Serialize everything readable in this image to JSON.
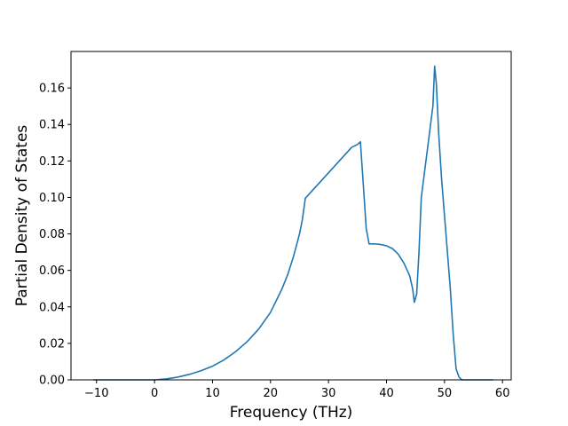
{
  "chart_data": {
    "type": "line",
    "title": "",
    "xlabel": "Frequency (THz)",
    "ylabel": "Partial Density of States",
    "xlim": [
      -14.4,
      61.5
    ],
    "ylim": [
      0.0,
      0.18
    ],
    "xticks": [
      -10,
      0,
      10,
      20,
      30,
      40,
      50,
      60
    ],
    "xtick_labels": [
      "−10",
      "0",
      "10",
      "20",
      "30",
      "40",
      "50",
      "60"
    ],
    "yticks": [
      0.0,
      0.02,
      0.04,
      0.06,
      0.08,
      0.1,
      0.12,
      0.14,
      0.16
    ],
    "ytick_labels": [
      "0.00",
      "0.02",
      "0.04",
      "0.06",
      "0.08",
      "0.10",
      "0.12",
      "0.14",
      "0.16"
    ],
    "grid": false,
    "legend": "none",
    "colors": {
      "line": "#1f77b4",
      "axes": "#000000",
      "background": "#ffffff"
    },
    "series": [
      {
        "x": [
          -10.5,
          -5,
          0,
          2,
          4,
          6,
          8,
          10,
          12,
          14,
          16,
          18,
          20,
          22,
          23,
          24,
          25,
          25.5,
          26,
          28,
          30,
          32,
          34,
          35,
          35.5,
          36,
          36.5,
          37,
          38,
          39,
          40,
          41,
          42,
          43,
          44,
          44.5,
          44.8,
          45.2,
          45.6,
          46,
          47,
          48,
          48.3,
          48.6,
          49,
          49.5,
          50,
          50.5,
          51,
          51.5,
          52,
          52.5,
          53,
          58.3
        ],
        "y": [
          0.0,
          0.0,
          0.0,
          0.0005,
          0.0015,
          0.003,
          0.005,
          0.0075,
          0.011,
          0.0155,
          0.021,
          0.028,
          0.037,
          0.05,
          0.058,
          0.068,
          0.08,
          0.088,
          0.0995,
          0.1065,
          0.1135,
          0.1205,
          0.1275,
          0.129,
          0.1305,
          0.107,
          0.083,
          0.0745,
          0.0745,
          0.0742,
          0.0735,
          0.072,
          0.069,
          0.064,
          0.057,
          0.05,
          0.0425,
          0.047,
          0.07,
          0.1,
          0.125,
          0.15,
          0.172,
          0.162,
          0.135,
          0.11,
          0.09,
          0.07,
          0.05,
          0.025,
          0.006,
          0.0015,
          0.0,
          0.0
        ]
      }
    ]
  }
}
